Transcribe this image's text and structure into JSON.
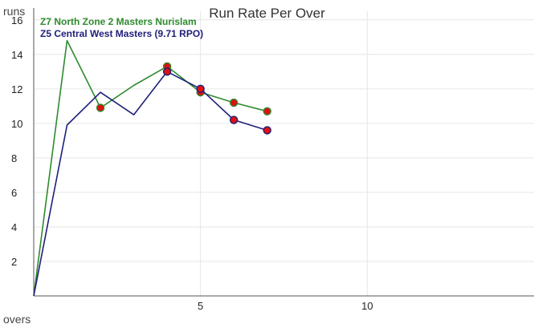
{
  "chart_data": {
    "type": "line",
    "title": "Run Rate Per Over",
    "xlabel": "overs",
    "ylabel": "runs",
    "xlim": [
      0,
      15
    ],
    "ylim": [
      0,
      16.5
    ],
    "x_ticks": [
      5,
      10
    ],
    "y_ticks": [
      2,
      4,
      6,
      8,
      10,
      12,
      14,
      16
    ],
    "grid": true,
    "legend_position": "top-left",
    "series": [
      {
        "name": "Z7 North Zone 2 Masters Nurislam",
        "color": "#2e8b2e",
        "x": [
          0,
          1,
          2,
          3,
          4,
          5,
          6,
          7
        ],
        "values": [
          0,
          14.8,
          10.9,
          12.2,
          13.3,
          11.8,
          11.2,
          10.7
        ],
        "markers": [
          2,
          4,
          5,
          6,
          7
        ]
      },
      {
        "name": "Z5 Central West Masters (9.71 RPO)",
        "color": "#1f1f7a",
        "x": [
          0,
          1,
          2,
          3,
          4,
          5,
          6,
          7
        ],
        "values": [
          0,
          9.9,
          11.8,
          10.5,
          13.0,
          12.0,
          10.2,
          9.6
        ],
        "markers": [
          4,
          5,
          6,
          7
        ]
      }
    ],
    "marker_color": "#dd1111"
  }
}
